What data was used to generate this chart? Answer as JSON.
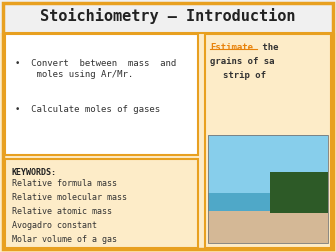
{
  "title": "Stoichiometry – Introduction",
  "title_fontsize": 11,
  "title_bg": "#f0f0f0",
  "title_color": "#222222",
  "title_font": "monospace",
  "header_border_color": "#e8a020",
  "left_bg": "#ffffff",
  "left_border": "#e8a020",
  "bullet1": "•  Convert  between  mass  and\n    moles using Ar/Mr.",
  "bullet2": "•  Calculate moles of gases",
  "keywords_bg": "#fdecc8",
  "keywords_border": "#e8a020",
  "keywords_title": "KEYWORDS:",
  "keywords": [
    "Relative formula mass",
    "Relative molecular mass",
    "Relative atomic mass",
    "Avogadro constant",
    "Molar volume of a gas"
  ],
  "right_bg": "#fdecc8",
  "right_border": "#e8a020",
  "estimate_word": "Estimate",
  "estimate_color": "#e8820a",
  "right_text_rest_line1": " the",
  "right_text_line2": "grains of sa",
  "right_text_line3": "strip of",
  "font_mono": "monospace",
  "body_fontsize": 6.5,
  "keywords_fontsize": 6.0,
  "outer_bg": "#fdecc8",
  "sky_color": "#87ceeb",
  "sea_color": "#4fa8c8",
  "sand_color": "#d4b896",
  "tree_color": "#2d5a27"
}
